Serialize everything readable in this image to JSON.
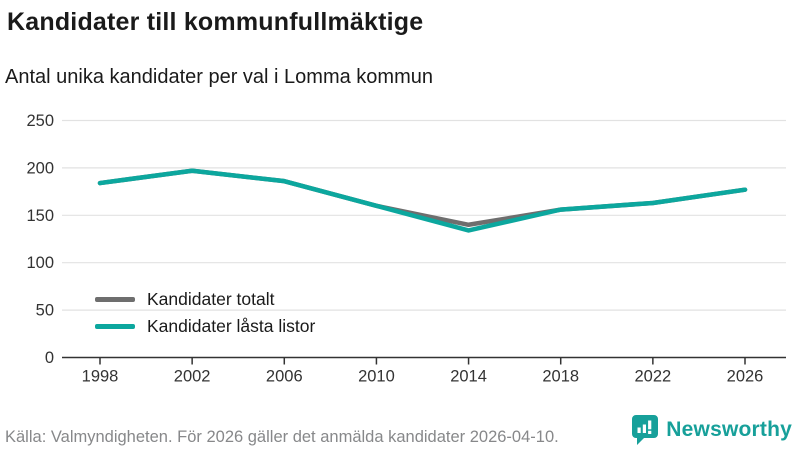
{
  "header": {
    "title": "Kandidater till kommunfullmäktige",
    "subtitle": "Antal unika kandidater per val i Lomma kommun"
  },
  "chart_data": {
    "type": "line",
    "categories": [
      "1998",
      "2002",
      "2006",
      "2010",
      "2014",
      "2018",
      "2022",
      "2026"
    ],
    "series": [
      {
        "name": "Kandidater totalt",
        "color": "#6e6e6e",
        "values": [
          184,
          197,
          186,
          160,
          140,
          156,
          163,
          177
        ]
      },
      {
        "name": "Kandidater låsta listor",
        "color": "#0ca79e",
        "values": [
          184,
          197,
          186,
          160,
          134,
          156,
          163,
          177
        ]
      }
    ],
    "xlabel": "",
    "ylabel": "",
    "ylim": [
      0,
      250
    ],
    "yticks": [
      0,
      50,
      100,
      150,
      200,
      250
    ],
    "grid": "horizontal",
    "legend_position": "inside-bottom-left"
  },
  "footer": {
    "source": "Källa: Valmyndigheten. För 2026 gäller det anmälda kandidater 2026-04-10.",
    "brand": "Newsworthy"
  },
  "colors": {
    "accent": "#0ca79e",
    "gray_series": "#6e6e6e",
    "grid": "#e2e2e2",
    "axis": "#333333",
    "source_text": "#87888a"
  }
}
